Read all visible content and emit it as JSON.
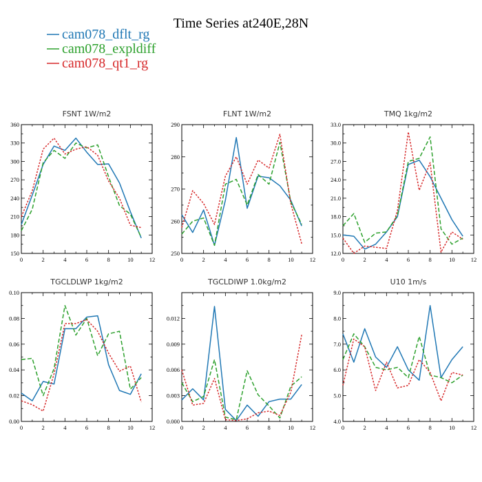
{
  "figure_title": "Time Series at240E,28N",
  "legend": [
    {
      "name": "cam078_dflt_rg",
      "color": "#1f77b4",
      "dash": "solid"
    },
    {
      "name": "cam078_expldiff",
      "color": "#2ca02c",
      "dash": "dashed"
    },
    {
      "name": "cam078_qt1_rg",
      "color": "#d62728",
      "dash": "dotted"
    }
  ],
  "chart_data": [
    {
      "type": "line",
      "title": "FSNT   1W/m2",
      "x": [
        0,
        1,
        2,
        3,
        4,
        5,
        6,
        7,
        8,
        9,
        10,
        11
      ],
      "xlim": [
        0,
        12
      ],
      "xticks": [
        0,
        2,
        4,
        6,
        8,
        10,
        12
      ],
      "ylim": [
        150,
        360
      ],
      "yticks": [
        150,
        180,
        210,
        240,
        270,
        300,
        330,
        360
      ],
      "ytick_labels": [
        "150",
        "180",
        "210",
        "240",
        "270",
        "300",
        "330",
        "360"
      ],
      "series": [
        {
          "name": "cam078_dflt_rg",
          "values": [
            197,
            245,
            295,
            325,
            318,
            338,
            315,
            295,
            296,
            265,
            218,
            175
          ]
        },
        {
          "name": "cam078_expldiff",
          "values": [
            187,
            222,
            298,
            318,
            305,
            330,
            322,
            327,
            275,
            228,
            214,
            176
          ]
        },
        {
          "name": "cam078_qt1_rg",
          "values": [
            210,
            252,
            320,
            338,
            312,
            320,
            324,
            310,
            268,
            240,
            196,
            192
          ]
        }
      ]
    },
    {
      "type": "line",
      "title": "FLNT   1W/m2",
      "x": [
        0,
        1,
        2,
        3,
        4,
        5,
        6,
        7,
        8,
        9,
        10,
        11
      ],
      "xlim": [
        0,
        12
      ],
      "xticks": [
        0,
        2,
        4,
        6,
        8,
        10,
        12
      ],
      "ylim": [
        250,
        290
      ],
      "yticks": [
        250,
        260,
        270,
        280,
        290
      ],
      "ytick_labels": [
        "250",
        "260",
        "270",
        "280",
        "290"
      ],
      "series": [
        {
          "name": "cam078_dflt_rg",
          "values": [
            262,
            256.5,
            263.5,
            252.5,
            266.5,
            286,
            264,
            274,
            273.5,
            271,
            266.5,
            258.5
          ]
        },
        {
          "name": "cam078_expldiff",
          "values": [
            256,
            260,
            261,
            252.5,
            271.5,
            273,
            265,
            274.5,
            271.5,
            284.5,
            266,
            259
          ]
        },
        {
          "name": "cam078_qt1_rg",
          "values": [
            258,
            269.5,
            265.5,
            259,
            274,
            280,
            271.5,
            279,
            276.5,
            287,
            265.5,
            253
          ]
        }
      ]
    },
    {
      "type": "line",
      "title": "TMQ   1kg/m2",
      "x": [
        0,
        1,
        2,
        3,
        4,
        5,
        6,
        7,
        8,
        9,
        10,
        11
      ],
      "xlim": [
        0,
        12
      ],
      "xticks": [
        0,
        2,
        4,
        6,
        8,
        10,
        12
      ],
      "ylim": [
        12,
        33
      ],
      "yticks": [
        12,
        15,
        18,
        21,
        24,
        27,
        30,
        33
      ],
      "ytick_labels": [
        "12.0",
        "15.0",
        "18.0",
        "21.0",
        "24.0",
        "27.0",
        "30.0",
        "33.0"
      ],
      "series": [
        {
          "name": "cam078_dflt_rg",
          "values": [
            15,
            14.8,
            12.7,
            13.5,
            15.5,
            18,
            26.5,
            27.2,
            24.5,
            21,
            17.5,
            14.8
          ]
        },
        {
          "name": "cam078_expldiff",
          "values": [
            16.5,
            18.5,
            13.8,
            15.3,
            15.5,
            18.2,
            27,
            27.5,
            31,
            16,
            13.5,
            14.5
          ]
        },
        {
          "name": "cam078_qt1_rg",
          "values": [
            14.5,
            12,
            13.2,
            13,
            12.8,
            19,
            31.8,
            22.3,
            26.8,
            12.2,
            15.5,
            14.3
          ]
        }
      ]
    },
    {
      "type": "line",
      "title": "TGCLDLWP   1kg/m2",
      "x": [
        0,
        1,
        2,
        3,
        4,
        5,
        6,
        7,
        8,
        9,
        10,
        11
      ],
      "xlim": [
        0,
        12
      ],
      "xticks": [
        0,
        2,
        4,
        6,
        8,
        10,
        12
      ],
      "ylim": [
        0,
        0.1
      ],
      "yticks": [
        0,
        0.02,
        0.04,
        0.06,
        0.08,
        0.1
      ],
      "ytick_labels": [
        "0.00",
        "0.02",
        "0.04",
        "0.06",
        "0.08",
        "0.10"
      ],
      "series": [
        {
          "name": "cam078_dflt_rg",
          "values": [
            0.022,
            0.016,
            0.031,
            0.029,
            0.072,
            0.072,
            0.081,
            0.082,
            0.044,
            0.024,
            0.021,
            0.037
          ]
        },
        {
          "name": "cam078_expldiff",
          "values": [
            0.048,
            0.049,
            0.02,
            0.041,
            0.09,
            0.067,
            0.08,
            0.051,
            0.068,
            0.07,
            0.025,
            0.034
          ]
        },
        {
          "name": "cam078_qt1_rg",
          "values": [
            0.016,
            0.013,
            0.008,
            0.037,
            0.076,
            0.076,
            0.079,
            0.07,
            0.053,
            0.039,
            0.043,
            0.015
          ]
        }
      ]
    },
    {
      "type": "line",
      "title": "TGCLDIWP   1.0kg/m2",
      "x": [
        0,
        1,
        2,
        3,
        4,
        5,
        6,
        7,
        8,
        9,
        10,
        11
      ],
      "xlim": [
        0,
        12
      ],
      "xticks": [
        0,
        2,
        4,
        6,
        8,
        10,
        12
      ],
      "ylim": [
        0,
        0.015
      ],
      "yticks": [
        0,
        0.003,
        0.006,
        0.009,
        0.012
      ],
      "ytick_labels": [
        "0.000",
        "0.003",
        "0.006",
        "0.009",
        "0.012"
      ],
      "series": [
        {
          "name": "cam078_dflt_rg",
          "values": [
            0.0025,
            0.0038,
            0.0025,
            0.0134,
            0.0014,
            0.0001,
            0.0019,
            0.0006,
            0.0023,
            0.0026,
            0.0026,
            0.0043
          ]
        },
        {
          "name": "cam078_expldiff",
          "values": [
            0.0045,
            0.0023,
            0.0029,
            0.0072,
            0.0005,
            0.0002,
            0.0059,
            0.0031,
            0.0018,
            0.0004,
            0.0041,
            0.0052
          ]
        },
        {
          "name": "cam078_qt1_rg",
          "values": [
            0.006,
            0.0019,
            0.0021,
            0.005,
            0.0002,
            0.0001,
            0.0003,
            0.001,
            0.0012,
            0.0007,
            0.0034,
            0.0101
          ]
        }
      ]
    },
    {
      "type": "line",
      "title": "U10   1m/s",
      "x": [
        0,
        1,
        2,
        3,
        4,
        5,
        6,
        7,
        8,
        9,
        10,
        11
      ],
      "xlim": [
        0,
        12
      ],
      "xticks": [
        0,
        2,
        4,
        6,
        8,
        10,
        12
      ],
      "ylim": [
        4,
        9
      ],
      "yticks": [
        4,
        5,
        6,
        7,
        8,
        9
      ],
      "ytick_labels": [
        "4.0",
        "5.0",
        "6.0",
        "7.0",
        "8.0",
        "9.0"
      ],
      "series": [
        {
          "name": "cam078_dflt_rg",
          "values": [
            7.4,
            6.3,
            7.6,
            6.5,
            6.1,
            6.9,
            6.0,
            5.6,
            8.5,
            5.7,
            6.4,
            6.9
          ]
        },
        {
          "name": "cam078_expldiff",
          "values": [
            6.4,
            7.4,
            6.9,
            6.1,
            6.0,
            6.1,
            5.7,
            7.3,
            5.8,
            5.7,
            5.5,
            5.8
          ]
        },
        {
          "name": "cam078_qt1_rg",
          "values": [
            5.4,
            7.2,
            6.9,
            5.2,
            6.3,
            5.3,
            5.4,
            6.4,
            5.9,
            4.8,
            5.9,
            5.8
          ]
        }
      ]
    }
  ]
}
